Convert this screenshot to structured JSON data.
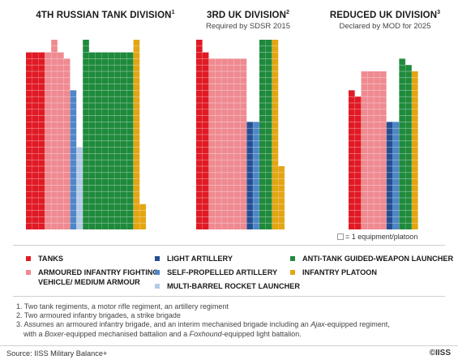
{
  "chart_data": {
    "type": "unit-grid",
    "unit_note": "= 1 equipment/platoon",
    "divisions": [
      {
        "title": "4TH RUSSIAN TANK DIVISION",
        "marker": "1",
        "subtitle": "",
        "columns": [
          {
            "category": "tanks",
            "height": 28
          },
          {
            "category": "tanks",
            "height": 28
          },
          {
            "category": "tanks",
            "height": 28
          },
          {
            "category": "ifv",
            "height": 28
          },
          {
            "category": "ifv",
            "height": 30
          },
          {
            "category": "ifv",
            "height": 28
          },
          {
            "category": "ifv",
            "height": 27
          },
          {
            "category": "spa",
            "height": 22
          },
          {
            "category": "mrl",
            "height": 13
          },
          {
            "category": "atgw",
            "height": 30
          },
          {
            "category": "atgw",
            "height": 28
          },
          {
            "category": "atgw",
            "height": 28
          },
          {
            "category": "atgw",
            "height": 28
          },
          {
            "category": "atgw",
            "height": 28
          },
          {
            "category": "atgw",
            "height": 28
          },
          {
            "category": "atgw",
            "height": 28
          },
          {
            "category": "atgw",
            "height": 28
          },
          {
            "category": "infantry",
            "height": 30
          },
          {
            "category": "infantry",
            "height": 4
          }
        ]
      },
      {
        "title": "3RD UK DIVISION",
        "marker": "2",
        "subtitle": "Required by SDSR 2015",
        "columns": [
          {
            "category": "tanks",
            "height": 30
          },
          {
            "category": "tanks",
            "height": 28
          },
          {
            "category": "ifv",
            "height": 27
          },
          {
            "category": "ifv",
            "height": 27
          },
          {
            "category": "ifv",
            "height": 27
          },
          {
            "category": "ifv",
            "height": 27
          },
          {
            "category": "ifv",
            "height": 27
          },
          {
            "category": "ifv",
            "height": 27
          },
          {
            "category": "la",
            "height": 17
          },
          {
            "category": "spa",
            "height": 17
          },
          {
            "category": "atgw",
            "height": 30
          },
          {
            "category": "atgw",
            "height": 30
          },
          {
            "category": "infantry",
            "height": 30
          },
          {
            "category": "infantry",
            "height": 10
          }
        ]
      },
      {
        "title": "REDUCED UK DIVISION",
        "marker": "3",
        "subtitle": "Declared by MOD for 2025",
        "columns": [
          {
            "category": "tanks",
            "height": 22
          },
          {
            "category": "tanks",
            "height": 21
          },
          {
            "category": "ifv",
            "height": 25
          },
          {
            "category": "ifv",
            "height": 25
          },
          {
            "category": "ifv",
            "height": 25
          },
          {
            "category": "ifv",
            "height": 25
          },
          {
            "category": "la",
            "height": 17
          },
          {
            "category": "spa",
            "height": 17
          },
          {
            "category": "atgw",
            "height": 27
          },
          {
            "category": "atgw",
            "height": 26
          },
          {
            "category": "infantry",
            "height": 25
          }
        ]
      }
    ],
    "categories": [
      {
        "key": "tanks",
        "label": "TANKS",
        "color": "#e01a24"
      },
      {
        "key": "ifv",
        "label": "ARMOURED INFANTRY FIGHTING VEHICLE/ MEDIUM ARMOUR",
        "color": "#ef8a91"
      },
      {
        "key": "la",
        "label": "LIGHT ARTILLERY",
        "color": "#244f93"
      },
      {
        "key": "spa",
        "label": "SELF-PROPELLED ARTILLERY",
        "color": "#4e86c8"
      },
      {
        "key": "mrl",
        "label": "MULTI-BARREL ROCKET LAUNCHER",
        "color": "#b4cbe6"
      },
      {
        "key": "atgw",
        "label": "ANTI-TANK GUIDED-WEAPON LAUNCHER",
        "color": "#1f8a3c"
      },
      {
        "key": "infantry",
        "label": "INFANTRY PLATOON",
        "color": "#e3a512"
      }
    ]
  },
  "legend": {
    "tanks": "TANKS",
    "ifv_line1": "ARMOURED INFANTRY FIGHTING",
    "ifv_line2": "VEHICLE/ MEDIUM ARMOUR",
    "la": "LIGHT ARTILLERY",
    "spa": "SELF-PROPELLED ARTILLERY",
    "mrl": "MULTI-BARREL ROCKET LAUNCHER",
    "atgw": "ANTI-TANK GUIDED-WEAPON LAUNCHER",
    "infantry": "INFANTRY PLATOON"
  },
  "notes": {
    "n1": "1. Two tank regiments, a motor rifle regiment, an artillery regiment",
    "n2": "2. Two armoured infantry brigades, a strike brigade",
    "n3a": "3. Assumes an armoured infantry brigade, and an interim mechanised brigade including an ",
    "n3_ajax": "Ajax",
    "n3b": "-equipped regiment,",
    "n3c": "with a ",
    "n3_boxer": "Boxer",
    "n3d": "-equipped mechanised battalion and a ",
    "n3_foxhound": "Foxhound",
    "n3e": "-equipped light battalion."
  },
  "footer": {
    "source": "Source: IISS Military Balance+",
    "brand": "©IISS"
  }
}
